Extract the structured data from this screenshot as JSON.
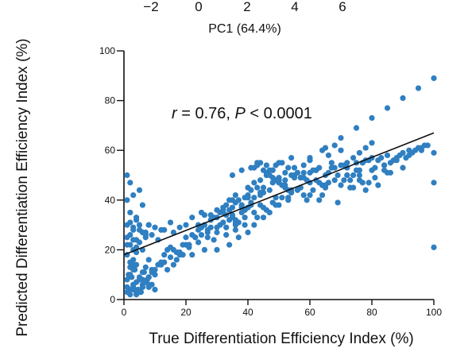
{
  "top_axis": {
    "label": "PC1 (64.4%)",
    "tick_labels": [
      "−2",
      "0",
      "2",
      "4",
      "6"
    ]
  },
  "annotation": {
    "r_symbol": "r",
    "r_text": " = 0.76, ",
    "p_symbol": "P",
    "p_text": " < 0.0001"
  },
  "colors": {
    "points": "#2f7fc1",
    "line": "#111111",
    "axis": "#111111"
  },
  "chart_data": {
    "type": "scatter",
    "title": "",
    "xlabel": "True Differentiation Efficiency Index (%)",
    "ylabel": "Predicted Differentiation Efficiency Index (%)",
    "xlim": [
      0,
      100
    ],
    "ylim": [
      0,
      100
    ],
    "x_ticks": [
      0,
      20,
      40,
      60,
      80,
      100
    ],
    "y_ticks": [
      0,
      20,
      40,
      60,
      80,
      100
    ],
    "grid": false,
    "trend_line": {
      "x": [
        0,
        100
      ],
      "y": [
        18,
        67
      ]
    },
    "points_x": [
      1,
      2,
      3,
      4,
      5,
      6,
      7,
      8,
      1.5,
      2.5,
      3.5,
      4.5,
      5.5,
      6.5,
      7.5,
      2,
      3,
      4,
      6,
      8,
      1,
      3,
      5,
      7,
      2,
      4,
      6,
      1,
      2,
      3,
      4,
      5,
      6,
      7,
      8,
      9,
      1,
      2,
      3,
      4,
      5,
      6,
      7,
      8,
      9,
      10,
      1,
      2,
      3,
      4,
      5,
      6,
      7,
      8,
      2,
      4,
      6,
      1,
      3,
      5,
      1,
      2,
      1,
      3,
      2,
      4,
      1,
      2,
      3,
      4,
      6,
      8,
      10,
      12,
      15,
      3,
      5,
      7,
      9,
      11,
      13,
      16,
      18,
      20,
      22,
      25,
      28,
      30,
      32,
      35,
      38,
      40,
      42,
      45,
      48,
      50,
      52,
      55,
      58,
      60,
      62,
      65,
      68,
      70,
      72,
      75,
      78,
      80,
      82,
      85,
      88,
      90,
      92,
      95,
      97,
      14,
      17,
      19,
      21,
      23,
      24,
      26,
      27,
      29,
      31,
      33,
      34,
      36,
      37,
      39,
      41,
      43,
      44,
      46,
      47,
      49,
      51,
      53,
      54,
      56,
      57,
      59,
      61,
      63,
      64,
      66,
      67,
      69,
      71,
      73,
      74,
      76,
      77,
      79,
      81,
      83,
      84,
      86,
      87,
      89,
      91,
      93,
      94,
      96,
      98,
      10,
      12,
      14,
      16,
      18,
      20,
      22,
      24,
      26,
      28,
      30,
      32,
      34,
      36,
      38,
      40,
      42,
      44,
      46,
      48,
      50,
      52,
      54,
      56,
      58,
      60,
      62,
      64,
      66,
      68,
      70,
      72,
      74,
      76,
      78,
      80,
      15,
      20,
      25,
      30,
      35,
      40,
      45,
      50,
      55,
      60,
      65,
      70,
      75,
      80,
      85,
      90,
      95,
      100,
      100,
      100,
      100,
      35,
      38,
      41,
      43,
      46,
      48,
      52,
      55,
      57,
      62,
      66,
      70,
      74,
      78,
      30,
      34,
      37,
      40,
      42,
      45,
      47,
      50,
      53,
      56,
      60,
      63,
      65,
      68,
      72,
      75,
      79,
      82,
      86,
      90,
      8,
      11,
      13,
      16,
      19,
      23,
      27,
      31,
      36,
      39,
      44,
      49,
      54,
      59,
      64,
      69,
      73,
      77,
      81,
      85,
      22,
      26,
      29,
      33,
      36,
      39,
      43,
      46,
      49,
      53,
      58,
      61,
      65,
      71,
      76,
      80,
      84,
      88,
      92,
      96,
      3,
      6,
      9,
      12,
      15,
      18,
      21,
      24,
      27,
      30,
      33,
      36,
      39,
      42,
      45,
      48,
      51,
      54,
      57,
      60,
      10,
      13,
      17,
      21,
      25,
      28,
      32,
      35,
      38,
      41,
      44,
      47,
      50,
      55,
      58,
      63,
      67,
      72,
      76,
      84,
      42,
      43,
      44,
      45,
      46,
      47,
      48,
      49,
      50,
      51,
      52,
      53,
      54,
      38,
      39,
      40,
      41,
      36,
      37,
      34,
      35,
      33,
      32
    ],
    "points_y": [
      5,
      4,
      6,
      3,
      8,
      5,
      7,
      6,
      10,
      9,
      12,
      4,
      3,
      11,
      8,
      15,
      14,
      2,
      6,
      9,
      25,
      28,
      30,
      27,
      22,
      24,
      20,
      3,
      2,
      4,
      7,
      9,
      11,
      13,
      5,
      6,
      8,
      10,
      12,
      14,
      3,
      5,
      7,
      9,
      11,
      4,
      30,
      31,
      29,
      32,
      28,
      27,
      26,
      30,
      35,
      33,
      38,
      40,
      42,
      44,
      50,
      47,
      18,
      16,
      13,
      19,
      22,
      26,
      24,
      21,
      27,
      30,
      29,
      28,
      31,
      20,
      23,
      25,
      26,
      24,
      28,
      27,
      29,
      30,
      33,
      35,
      34,
      36,
      37,
      40,
      38,
      42,
      41,
      43,
      47,
      48,
      46,
      50,
      49,
      51,
      52,
      50,
      53,
      54,
      53,
      55,
      56,
      57,
      56,
      58,
      57,
      59,
      60,
      61,
      62,
      12,
      16,
      18,
      22,
      25,
      28,
      30,
      27,
      33,
      35,
      38,
      36,
      39,
      40,
      41,
      44,
      45,
      48,
      50,
      52,
      54,
      55,
      53,
      50,
      51,
      49,
      48,
      52,
      47,
      46,
      51,
      53,
      50,
      54,
      48,
      50,
      52,
      55,
      56,
      53,
      57,
      54,
      55,
      56,
      58,
      57,
      59,
      60,
      61,
      62,
      10,
      15,
      20,
      14,
      18,
      22,
      26,
      30,
      34,
      32,
      29,
      36,
      40,
      42,
      38,
      45,
      47,
      43,
      50,
      52,
      55,
      48,
      57,
      51,
      54,
      56,
      52,
      60,
      58,
      62,
      60,
      55,
      57,
      59,
      61,
      63,
      21,
      25,
      29,
      33,
      37,
      41,
      45,
      49,
      53,
      57,
      61,
      65,
      69,
      73,
      77,
      81,
      85,
      89,
      59,
      47,
      21,
      50,
      52,
      53,
      55,
      54,
      52,
      51,
      50,
      49,
      48,
      47,
      46,
      45,
      44,
      20,
      22,
      25,
      27,
      30,
      33,
      35,
      38,
      41,
      44,
      42,
      40,
      45,
      48,
      50,
      52,
      47,
      46,
      51,
      53,
      16,
      14,
      18,
      20,
      22,
      25,
      28,
      30,
      32,
      36,
      38,
      41,
      44,
      40,
      42,
      39,
      45,
      47,
      49,
      51,
      18,
      20,
      24,
      26,
      28,
      30,
      33,
      36,
      38,
      40,
      42,
      44,
      46,
      48,
      50,
      52,
      54,
      56,
      58,
      60,
      5,
      8,
      12,
      14,
      17,
      19,
      21,
      23,
      25,
      27,
      29,
      31,
      33,
      35,
      37,
      39,
      41,
      43,
      45,
      47,
      12,
      15,
      19,
      22,
      26,
      29,
      31,
      34,
      37,
      39,
      42,
      44,
      47,
      49,
      51,
      53,
      55,
      50,
      48,
      52,
      53,
      54,
      55,
      52,
      51,
      50,
      49,
      48,
      47,
      46,
      45,
      44,
      43,
      35,
      36,
      37,
      38,
      30,
      31,
      32,
      33,
      34,
      35
    ]
  }
}
